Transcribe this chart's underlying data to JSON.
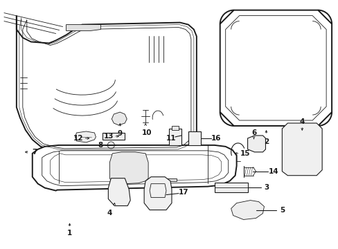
{
  "bg_color": "#ffffff",
  "line_color": "#1a1a1a",
  "figsize": [
    4.89,
    3.6
  ],
  "dpi": 100,
  "lw_main": 1.4,
  "lw_inner": 0.8,
  "lw_thin": 0.6,
  "label_fs": 7.5
}
